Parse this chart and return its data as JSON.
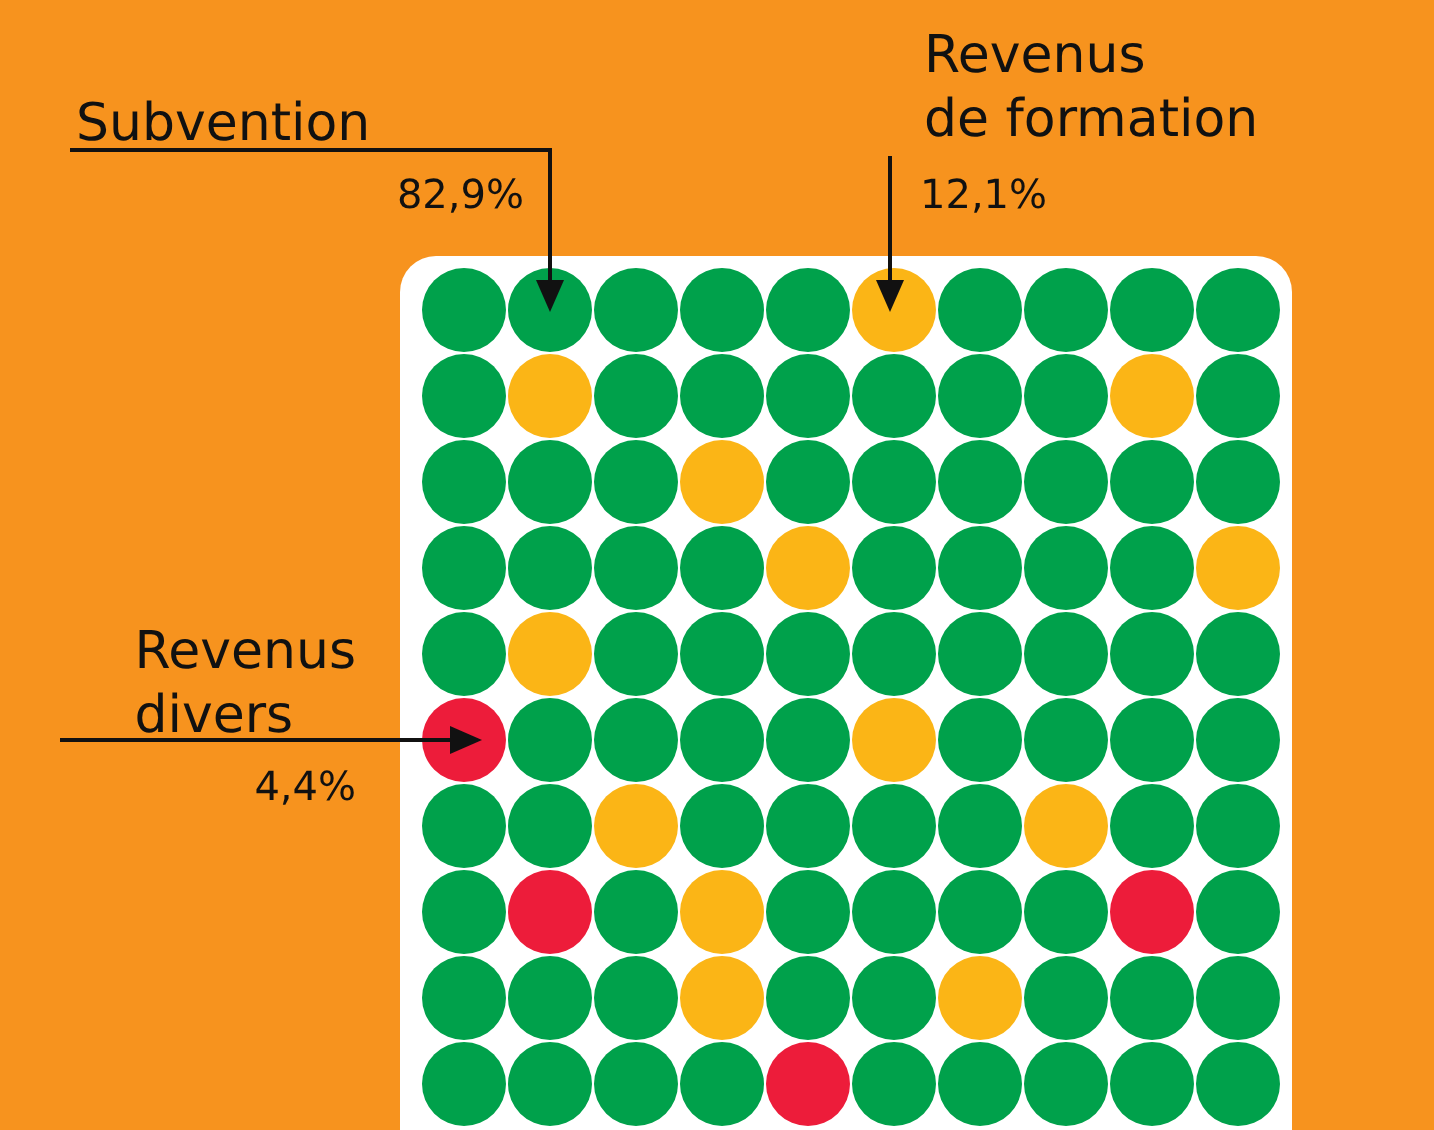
{
  "chart_data": {
    "type": "other",
    "categories": [
      "Subvention",
      "Revenus de formation",
      "Revenus divers"
    ],
    "values": [
      82.9,
      12.1,
      4.4
    ],
    "colors": [
      "#00a14b",
      "#fbb516",
      "#ed1c3a"
    ],
    "value_labels": [
      "82,9%",
      "12,1%",
      "4,4%"
    ]
  }
}
